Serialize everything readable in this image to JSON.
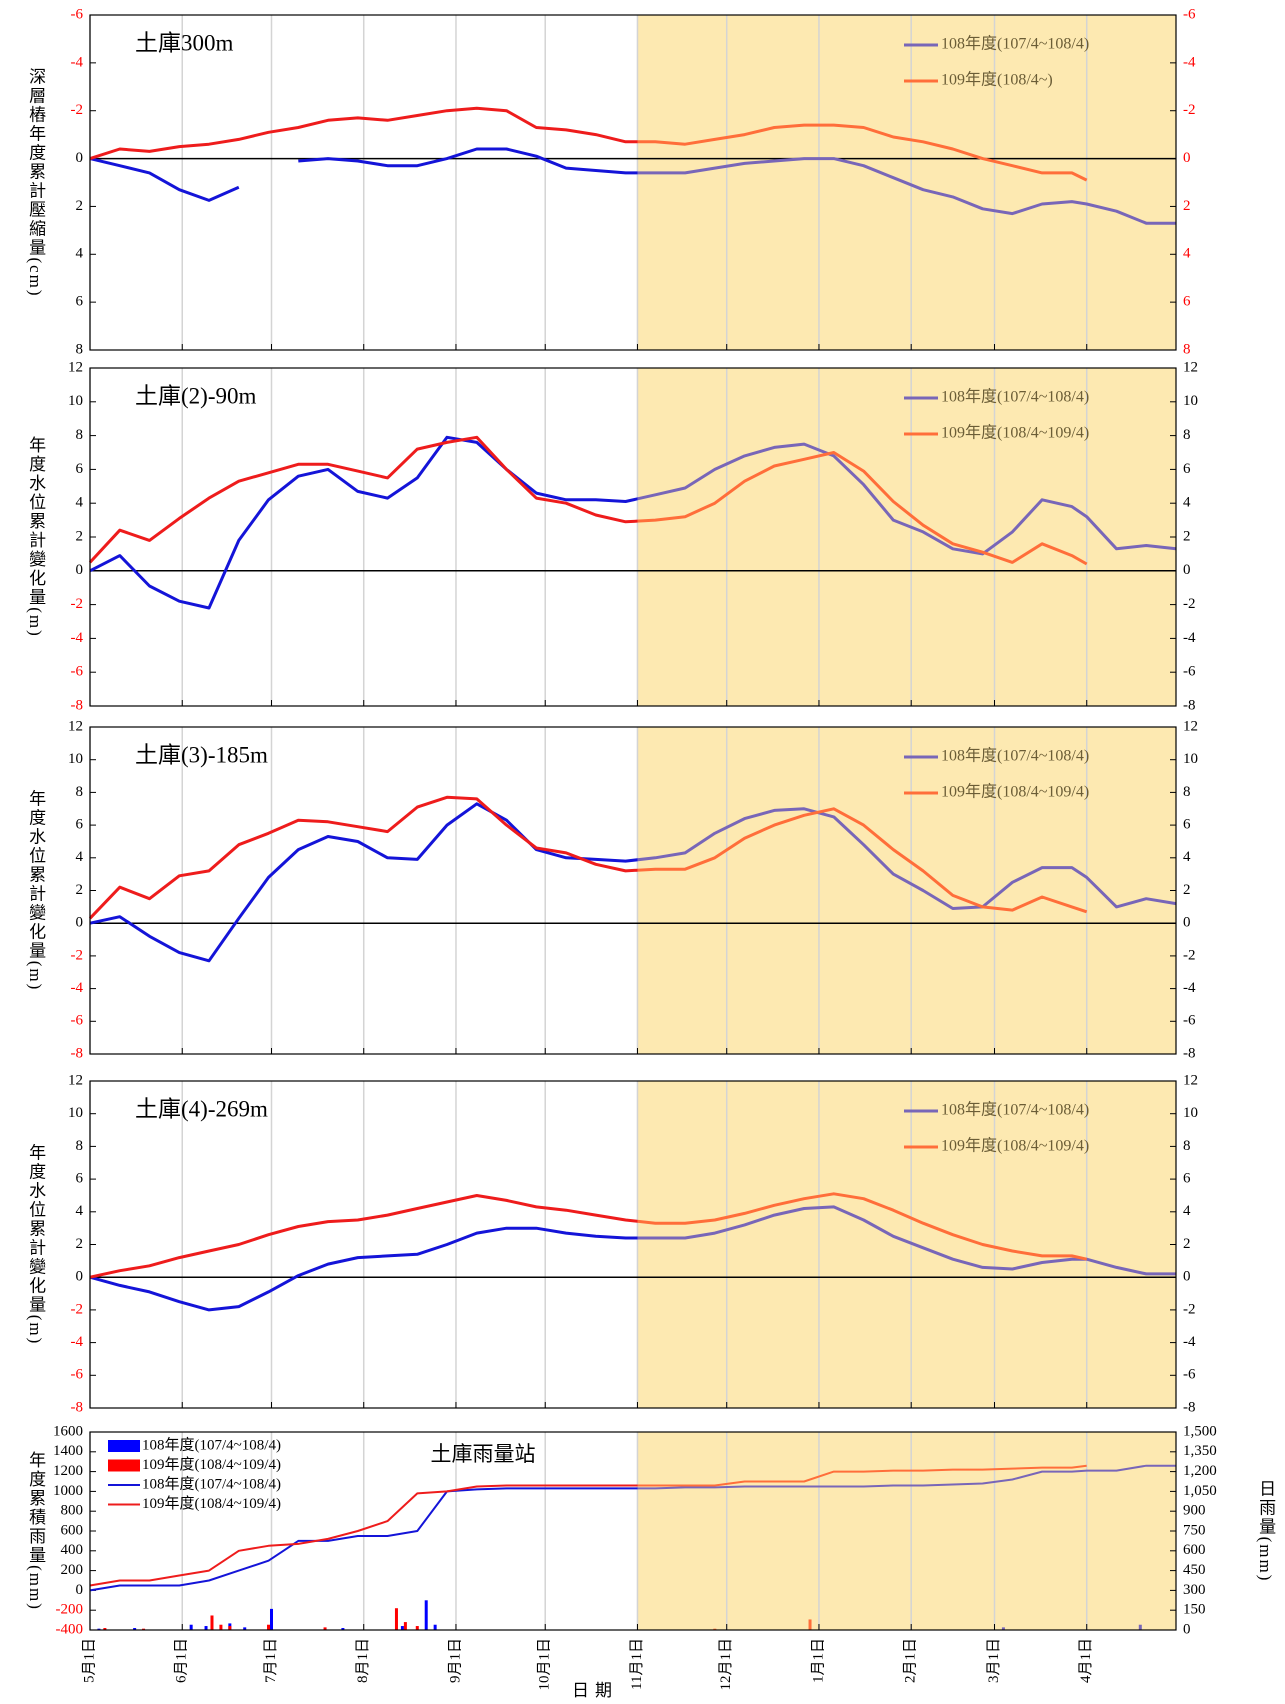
{
  "chart_data": [
    {
      "type": "line",
      "title": "土庫300m",
      "ylabel": "深層樁年度累計壓縮量(cm)",
      "legend": "upper right",
      "inverted": true,
      "zero_line": true,
      "grid": true,
      "xlim": [
        0,
        365
      ],
      "ylim": [
        -6,
        8
      ],
      "yticks": [
        -6,
        -4,
        -2,
        0,
        2,
        4,
        6,
        8
      ],
      "negative_tick_color": "#ff0000",
      "mirror_yticks": true,
      "mirror_tick_color": "#ff0000",
      "shaded": {
        "from": 184,
        "color": "#fde9b1"
      },
      "x": [
        0,
        10,
        20,
        30,
        40,
        50,
        60,
        70,
        80,
        90,
        100,
        110,
        120,
        130,
        140,
        150,
        160,
        170,
        180,
        190,
        200,
        210,
        220,
        230,
        240,
        250,
        260,
        270,
        280,
        290,
        300,
        310,
        320,
        330,
        335,
        345,
        355,
        365
      ],
      "series": [
        {
          "name": "108年度(107/4~108/4)",
          "color": "#1414d8",
          "shaded_color": "#7866b8",
          "values": [
            0,
            0.3,
            0.6,
            1.3,
            1.75,
            1.2,
            null,
            0.1,
            0.0,
            0.1,
            0.3,
            0.3,
            0.0,
            -0.4,
            -0.4,
            -0.1,
            0.4,
            0.5,
            0.6,
            0.6,
            0.6,
            0.4,
            0.2,
            0.1,
            0.0,
            0.0,
            0.3,
            0.8,
            1.3,
            1.6,
            2.1,
            2.3,
            1.9,
            1.8,
            1.9,
            2.2,
            2.7,
            2.7
          ]
        },
        {
          "name": "109年度(108/4~)",
          "color": "#ee1c1c",
          "shaded_color": "#ff6e3a",
          "values": [
            0,
            -0.4,
            -0.3,
            -0.5,
            -0.6,
            -0.8,
            -1.1,
            -1.3,
            -1.6,
            -1.7,
            -1.6,
            -1.8,
            -2.0,
            -2.1,
            -2.0,
            -1.3,
            -1.2,
            -1.0,
            -0.7,
            -0.7,
            -0.6,
            -0.8,
            -1.0,
            -1.3,
            -1.4,
            -1.4,
            -1.3,
            -0.9,
            -0.7,
            -0.4,
            0.0,
            0.3,
            0.6,
            0.6,
            0.9,
            null,
            null,
            null
          ]
        }
      ]
    },
    {
      "type": "line",
      "title": "土庫(2)-90m",
      "ylabel": "年度水位累計變化量(m)",
      "legend": "upper right",
      "zero_line": true,
      "grid": true,
      "xlim": [
        0,
        365
      ],
      "ylim": [
        -8,
        12
      ],
      "yticks": [
        -8,
        -6,
        -4,
        -2,
        0,
        2,
        4,
        6,
        8,
        10,
        12
      ],
      "negative_tick_color": "#ff0000",
      "mirror_yticks": true,
      "mirror_tick_color": "#000000",
      "shaded": {
        "from": 184,
        "color": "#fde9b1"
      },
      "x": [
        0,
        10,
        20,
        30,
        40,
        50,
        60,
        70,
        80,
        90,
        100,
        110,
        120,
        130,
        140,
        150,
        160,
        170,
        180,
        190,
        200,
        210,
        220,
        230,
        240,
        250,
        260,
        270,
        280,
        290,
        300,
        310,
        320,
        330,
        335,
        345,
        355,
        365
      ],
      "series": [
        {
          "name": "108年度(107/4~108/4)",
          "color": "#1414d8",
          "shaded_color": "#7866b8",
          "values": [
            0,
            0.9,
            -0.9,
            -1.8,
            -2.2,
            1.8,
            4.2,
            5.6,
            6.0,
            4.7,
            4.3,
            5.5,
            7.9,
            7.6,
            6.0,
            4.6,
            4.2,
            4.2,
            4.1,
            4.5,
            4.9,
            6.0,
            6.8,
            7.3,
            7.5,
            6.8,
            5.1,
            3.0,
            2.3,
            1.3,
            1.0,
            2.3,
            4.2,
            3.8,
            3.2,
            1.3,
            1.5,
            1.3
          ]
        },
        {
          "name": "109年度(108/4~109/4)",
          "color": "#ee1c1c",
          "shaded_color": "#ff6e3a",
          "values": [
            0.5,
            2.4,
            1.8,
            3.1,
            4.3,
            5.3,
            5.8,
            6.3,
            6.3,
            5.9,
            5.5,
            7.2,
            7.6,
            7.9,
            6.0,
            4.3,
            4.0,
            3.3,
            2.9,
            3.0,
            3.2,
            4.0,
            5.3,
            6.2,
            6.6,
            7.0,
            5.9,
            4.1,
            2.7,
            1.6,
            1.1,
            0.5,
            1.6,
            0.9,
            0.4,
            null,
            null,
            null
          ]
        }
      ]
    },
    {
      "type": "line",
      "title": "土庫(3)-185m",
      "ylabel": "年度水位累計變化量(m)",
      "legend": "upper right",
      "zero_line": true,
      "grid": true,
      "xlim": [
        0,
        365
      ],
      "ylim": [
        -8,
        12
      ],
      "yticks": [
        -8,
        -6,
        -4,
        -2,
        0,
        2,
        4,
        6,
        8,
        10,
        12
      ],
      "negative_tick_color": "#ff0000",
      "mirror_yticks": true,
      "mirror_tick_color": "#000000",
      "shaded": {
        "from": 184,
        "color": "#fde9b1"
      },
      "x": [
        0,
        10,
        20,
        30,
        40,
        50,
        60,
        70,
        80,
        90,
        100,
        110,
        120,
        130,
        140,
        150,
        160,
        170,
        180,
        190,
        200,
        210,
        220,
        230,
        240,
        250,
        260,
        270,
        280,
        290,
        300,
        310,
        320,
        330,
        335,
        345,
        355,
        365
      ],
      "series": [
        {
          "name": "108年度(107/4~108/4)",
          "color": "#1414d8",
          "shaded_color": "#7866b8",
          "values": [
            0,
            0.4,
            -0.8,
            -1.8,
            -2.3,
            0.3,
            2.8,
            4.5,
            5.3,
            5.0,
            4.0,
            3.9,
            6.0,
            7.3,
            6.3,
            4.5,
            4.0,
            3.9,
            3.8,
            4.0,
            4.3,
            5.5,
            6.4,
            6.9,
            7.0,
            6.5,
            4.8,
            3.0,
            2.0,
            0.9,
            1.0,
            2.5,
            3.4,
            3.4,
            2.8,
            1.0,
            1.5,
            1.2
          ]
        },
        {
          "name": "109年度(108/4~109/4)",
          "color": "#ee1c1c",
          "shaded_color": "#ff6e3a",
          "values": [
            0.3,
            2.2,
            1.5,
            2.9,
            3.2,
            4.8,
            5.5,
            6.3,
            6.2,
            5.9,
            5.6,
            7.1,
            7.7,
            7.6,
            6.0,
            4.6,
            4.3,
            3.6,
            3.2,
            3.3,
            3.3,
            4.0,
            5.2,
            6.0,
            6.6,
            7.0,
            6.0,
            4.5,
            3.2,
            1.7,
            1.0,
            0.8,
            1.6,
            1.0,
            0.7,
            null,
            null,
            null
          ]
        }
      ]
    },
    {
      "type": "line",
      "title": "土庫(4)-269m",
      "ylabel": "年度水位累計變化量(m)",
      "legend": "upper right",
      "zero_line": true,
      "grid": true,
      "xlim": [
        0,
        365
      ],
      "ylim": [
        -8,
        12
      ],
      "yticks": [
        -8,
        -6,
        -4,
        -2,
        0,
        2,
        4,
        6,
        8,
        10,
        12
      ],
      "negative_tick_color": "#ff0000",
      "mirror_yticks": true,
      "mirror_tick_color": "#000000",
      "shaded": {
        "from": 184,
        "color": "#fde9b1"
      },
      "x": [
        0,
        10,
        20,
        30,
        40,
        50,
        60,
        70,
        80,
        90,
        100,
        110,
        120,
        130,
        140,
        150,
        160,
        170,
        180,
        190,
        200,
        210,
        220,
        230,
        240,
        250,
        260,
        270,
        280,
        290,
        300,
        310,
        320,
        330,
        335,
        345,
        355,
        365
      ],
      "series": [
        {
          "name": "108年度(107/4~108/4)",
          "color": "#1414d8",
          "shaded_color": "#7866b8",
          "values": [
            0,
            -0.5,
            -0.9,
            -1.5,
            -2.0,
            -1.8,
            -0.9,
            0.1,
            0.8,
            1.2,
            1.3,
            1.4,
            2.0,
            2.7,
            3.0,
            3.0,
            2.7,
            2.5,
            2.4,
            2.4,
            2.4,
            2.7,
            3.2,
            3.8,
            4.2,
            4.3,
            3.5,
            2.5,
            1.8,
            1.1,
            0.6,
            0.5,
            0.9,
            1.1,
            1.1,
            0.6,
            0.2,
            0.2
          ]
        },
        {
          "name": "109年度(108/4~109/4)",
          "color": "#ee1c1c",
          "shaded_color": "#ff6e3a",
          "values": [
            0,
            0.4,
            0.7,
            1.2,
            1.6,
            2.0,
            2.6,
            3.1,
            3.4,
            3.5,
            3.8,
            4.2,
            4.6,
            5.0,
            4.7,
            4.3,
            4.1,
            3.8,
            3.5,
            3.3,
            3.3,
            3.5,
            3.9,
            4.4,
            4.8,
            5.1,
            4.8,
            4.1,
            3.3,
            2.6,
            2.0,
            1.6,
            1.3,
            1.3,
            1.1,
            null,
            null,
            null
          ]
        }
      ]
    },
    {
      "type": "line",
      "title": "土庫雨量站",
      "ylabel": "年度累積雨量(mm)",
      "y2label": "日雨量(mm)",
      "xlabel": "日期",
      "legend": "upper left",
      "grid": true,
      "xlim": [
        0,
        365
      ],
      "ylim": [
        -400,
        1600
      ],
      "yticks": [
        -400,
        -200,
        0,
        200,
        400,
        600,
        800,
        1000,
        1200,
        1400,
        1600
      ],
      "negative_tick_color": "#ff0000",
      "y2lim": [
        0,
        1500
      ],
      "y2ticks": [
        0,
        150,
        300,
        450,
        600,
        750,
        900,
        {
          "value": 1050,
          "label": "1,050"
        },
        {
          "value": 1200,
          "label": "1,200"
        },
        {
          "value": 1350,
          "label": "1,350"
        },
        {
          "value": 1500,
          "label": "1,500"
        }
      ],
      "xticks": [
        {
          "value": 0,
          "label": "5月1日"
        },
        {
          "value": 31,
          "label": "6月1日"
        },
        {
          "value": 61,
          "label": "7月1日"
        },
        {
          "value": 92,
          "label": "8月1日"
        },
        {
          "value": 123,
          "label": "9月1日"
        },
        {
          "value": 153,
          "label": "10月1日"
        },
        {
          "value": 184,
          "label": "11月1日"
        },
        {
          "value": 214,
          "label": "12月1日"
        },
        {
          "value": 245,
          "label": "1月1日"
        },
        {
          "value": 276,
          "label": "2月1日"
        },
        {
          "value": 304,
          "label": "3月1日"
        },
        {
          "value": 335,
          "label": "4月1日"
        }
      ],
      "shaded": {
        "from": 184,
        "color": "#fde9b1"
      },
      "x": [
        0,
        10,
        20,
        30,
        40,
        50,
        60,
        70,
        80,
        90,
        100,
        110,
        120,
        130,
        140,
        150,
        160,
        170,
        180,
        190,
        200,
        210,
        220,
        230,
        240,
        250,
        260,
        270,
        280,
        290,
        300,
        310,
        320,
        330,
        335,
        345,
        355,
        365
      ],
      "series": [
        {
          "name": "108年度(107/4~108/4)",
          "kind": "bar",
          "axis": "y2",
          "color": "#0000ff",
          "shaded_color": "#7866b8",
          "x": [
            3,
            15,
            34,
            39,
            47,
            52,
            61,
            85,
            105,
            113,
            116,
            307,
            353
          ],
          "values": [
            10,
            15,
            40,
            30,
            50,
            20,
            160,
            15,
            30,
            225,
            40,
            20,
            40
          ]
        },
        {
          "name": "109年度(108/4~109/4)",
          "kind": "bar",
          "axis": "y2",
          "color": "#ff0000",
          "shaded_color": "#ff6e3a",
          "x": [
            5,
            18,
            41,
            44,
            47,
            60,
            79,
            103,
            106,
            110,
            210,
            242
          ],
          "values": [
            15,
            10,
            110,
            40,
            30,
            40,
            20,
            165,
            60,
            30,
            10,
            80
          ]
        },
        {
          "name": "108年度(107/4~108/4)",
          "color": "#1414d8",
          "shaded_color": "#7866b8",
          "values": [
            0,
            50,
            50,
            50,
            100,
            200,
            300,
            500,
            500,
            550,
            550,
            600,
            1000,
            1020,
            1030,
            1030,
            1030,
            1030,
            1030,
            1030,
            1040,
            1040,
            1050,
            1050,
            1050,
            1050,
            1050,
            1060,
            1060,
            1070,
            1080,
            1120,
            1200,
            1200,
            1210,
            1210,
            1260,
            1260
          ]
        },
        {
          "name": "109年度(108/4~109/4)",
          "color": "#ee1c1c",
          "shaded_color": "#ff6e3a",
          "values": [
            50,
            100,
            100,
            150,
            200,
            400,
            450,
            470,
            520,
            600,
            700,
            980,
            1000,
            1050,
            1060,
            1060,
            1060,
            1060,
            1060,
            1060,
            1060,
            1060,
            1100,
            1100,
            1100,
            1200,
            1200,
            1210,
            1210,
            1220,
            1220,
            1230,
            1240,
            1240,
            1260,
            null,
            null,
            null
          ]
        }
      ]
    }
  ]
}
